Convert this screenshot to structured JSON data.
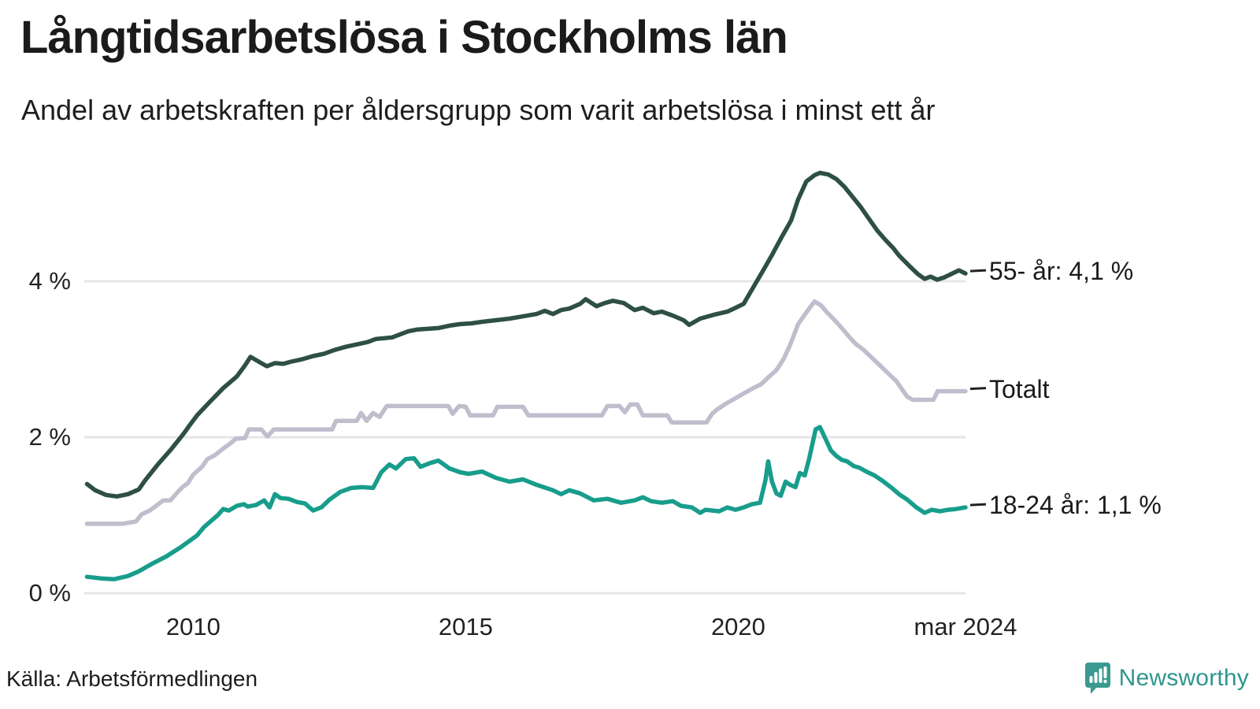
{
  "header": {
    "title": "Långtidsarbetslösa i Stockholms län",
    "subtitle": "Andel av arbetskraften per åldersgrupp som varit arbetslösa i minst ett år"
  },
  "footer": {
    "source": "Källa: Arbetsförmedlingen",
    "brand": "Newsworthy"
  },
  "colors": {
    "series_55plus": "#2e4f45",
    "series_total": "#c1bdcd",
    "series_18_24": "#189d8c",
    "gridline": "#e6e5e9",
    "tick_dash": "#222222",
    "brand_teal": "#2d968d",
    "brand_icon": "#3a9a91"
  },
  "chart_data": {
    "type": "line",
    "unit": "percent of labour force",
    "title": "Långtidsarbetslösa i Stockholms län",
    "subtitle": "Andel av arbetskraften per åldersgrupp som varit arbetslösa i minst ett år",
    "x_axis": {
      "range_years": [
        2008.0,
        2024.25
      ],
      "ticks": [
        {
          "t": 2010.0,
          "label": "2010"
        },
        {
          "t": 2015.0,
          "label": "2015"
        },
        {
          "t": 2020.0,
          "label": "2020"
        },
        {
          "t": 2024.17,
          "label": "mar 2024"
        }
      ]
    },
    "y_axis": {
      "range": [
        0,
        5.7
      ],
      "gridlines": true,
      "ticks": [
        {
          "v": 0,
          "label": "0 %"
        },
        {
          "v": 2,
          "label": "2 %"
        },
        {
          "v": 4,
          "label": "4 %"
        }
      ]
    },
    "legend_position": "right-end-labels",
    "series": [
      {
        "name": "55- år",
        "label": "55- år: 4,1 %",
        "end_value": 4.1,
        "color": "#2e4f45",
        "points": [
          [
            2008.05,
            1.4
          ],
          [
            2008.2,
            1.32
          ],
          [
            2008.4,
            1.26
          ],
          [
            2008.6,
            1.24
          ],
          [
            2008.8,
            1.27
          ],
          [
            2009.0,
            1.33
          ],
          [
            2009.11,
            1.44
          ],
          [
            2009.35,
            1.65
          ],
          [
            2009.6,
            1.85
          ],
          [
            2009.83,
            2.05
          ],
          [
            2009.93,
            2.15
          ],
          [
            2010.07,
            2.28
          ],
          [
            2010.3,
            2.45
          ],
          [
            2010.55,
            2.63
          ],
          [
            2010.8,
            2.78
          ],
          [
            2010.95,
            2.92
          ],
          [
            2011.05,
            3.03
          ],
          [
            2011.2,
            2.97
          ],
          [
            2011.35,
            2.91
          ],
          [
            2011.5,
            2.95
          ],
          [
            2011.65,
            2.94
          ],
          [
            2011.8,
            2.97
          ],
          [
            2012.0,
            3.0
          ],
          [
            2012.2,
            3.04
          ],
          [
            2012.4,
            3.07
          ],
          [
            2012.6,
            3.12
          ],
          [
            2012.8,
            3.16
          ],
          [
            2013.0,
            3.19
          ],
          [
            2013.2,
            3.22
          ],
          [
            2013.35,
            3.26
          ],
          [
            2013.5,
            3.27
          ],
          [
            2013.65,
            3.28
          ],
          [
            2013.8,
            3.32
          ],
          [
            2013.95,
            3.36
          ],
          [
            2014.1,
            3.38
          ],
          [
            2014.3,
            3.39
          ],
          [
            2014.5,
            3.4
          ],
          [
            2014.7,
            3.43
          ],
          [
            2014.9,
            3.45
          ],
          [
            2015.1,
            3.46
          ],
          [
            2015.3,
            3.48
          ],
          [
            2015.55,
            3.5
          ],
          [
            2015.8,
            3.52
          ],
          [
            2016.05,
            3.55
          ],
          [
            2016.3,
            3.58
          ],
          [
            2016.45,
            3.62
          ],
          [
            2016.6,
            3.58
          ],
          [
            2016.75,
            3.63
          ],
          [
            2016.9,
            3.65
          ],
          [
            2017.1,
            3.71
          ],
          [
            2017.2,
            3.77
          ],
          [
            2017.4,
            3.68
          ],
          [
            2017.55,
            3.72
          ],
          [
            2017.7,
            3.75
          ],
          [
            2017.9,
            3.72
          ],
          [
            2018.1,
            3.63
          ],
          [
            2018.25,
            3.66
          ],
          [
            2018.45,
            3.59
          ],
          [
            2018.6,
            3.61
          ],
          [
            2018.8,
            3.56
          ],
          [
            2019.0,
            3.5
          ],
          [
            2019.1,
            3.44
          ],
          [
            2019.3,
            3.52
          ],
          [
            2019.55,
            3.57
          ],
          [
            2019.8,
            3.61
          ],
          [
            2019.95,
            3.66
          ],
          [
            2020.1,
            3.71
          ],
          [
            2020.3,
            3.95
          ],
          [
            2020.45,
            4.13
          ],
          [
            2020.6,
            4.31
          ],
          [
            2020.8,
            4.57
          ],
          [
            2020.97,
            4.78
          ],
          [
            2021.1,
            5.05
          ],
          [
            2021.25,
            5.28
          ],
          [
            2021.4,
            5.36
          ],
          [
            2021.5,
            5.39
          ],
          [
            2021.65,
            5.37
          ],
          [
            2021.8,
            5.31
          ],
          [
            2021.95,
            5.21
          ],
          [
            2022.1,
            5.08
          ],
          [
            2022.25,
            4.95
          ],
          [
            2022.4,
            4.8
          ],
          [
            2022.55,
            4.65
          ],
          [
            2022.7,
            4.53
          ],
          [
            2022.85,
            4.42
          ],
          [
            2022.95,
            4.33
          ],
          [
            2023.05,
            4.26
          ],
          [
            2023.15,
            4.19
          ],
          [
            2023.3,
            4.09
          ],
          [
            2023.42,
            4.03
          ],
          [
            2023.53,
            4.06
          ],
          [
            2023.65,
            4.02
          ],
          [
            2023.78,
            4.05
          ],
          [
            2023.9,
            4.09
          ],
          [
            2024.05,
            4.14
          ],
          [
            2024.17,
            4.1
          ]
        ]
      },
      {
        "name": "Totalt",
        "label": "Totalt",
        "end_value": 2.6,
        "color": "#c1bdcd",
        "points": [
          [
            2008.05,
            0.89
          ],
          [
            2008.4,
            0.89
          ],
          [
            2008.7,
            0.89
          ],
          [
            2008.95,
            0.92
          ],
          [
            2009.05,
            1.01
          ],
          [
            2009.2,
            1.06
          ],
          [
            2009.3,
            1.11
          ],
          [
            2009.45,
            1.19
          ],
          [
            2009.58,
            1.19
          ],
          [
            2009.68,
            1.27
          ],
          [
            2009.8,
            1.36
          ],
          [
            2009.9,
            1.41
          ],
          [
            2010.0,
            1.52
          ],
          [
            2010.16,
            1.62
          ],
          [
            2010.26,
            1.72
          ],
          [
            2010.4,
            1.77
          ],
          [
            2010.54,
            1.85
          ],
          [
            2010.68,
            1.92
          ],
          [
            2010.78,
            1.98
          ],
          [
            2010.95,
            1.99
          ],
          [
            2011.02,
            2.1
          ],
          [
            2011.25,
            2.1
          ],
          [
            2011.36,
            2.01
          ],
          [
            2011.48,
            2.1
          ],
          [
            2012.55,
            2.1
          ],
          [
            2012.62,
            2.21
          ],
          [
            2013.0,
            2.21
          ],
          [
            2013.08,
            2.31
          ],
          [
            2013.18,
            2.21
          ],
          [
            2013.3,
            2.31
          ],
          [
            2013.42,
            2.26
          ],
          [
            2013.55,
            2.4
          ],
          [
            2014.68,
            2.4
          ],
          [
            2014.76,
            2.3
          ],
          [
            2014.88,
            2.4
          ],
          [
            2015.0,
            2.39
          ],
          [
            2015.08,
            2.28
          ],
          [
            2015.5,
            2.28
          ],
          [
            2015.58,
            2.39
          ],
          [
            2016.05,
            2.39
          ],
          [
            2016.15,
            2.28
          ],
          [
            2017.5,
            2.28
          ],
          [
            2017.6,
            2.4
          ],
          [
            2017.82,
            2.4
          ],
          [
            2017.92,
            2.32
          ],
          [
            2018.02,
            2.42
          ],
          [
            2018.15,
            2.42
          ],
          [
            2018.25,
            2.28
          ],
          [
            2018.7,
            2.28
          ],
          [
            2018.78,
            2.19
          ],
          [
            2019.42,
            2.19
          ],
          [
            2019.52,
            2.3
          ],
          [
            2019.62,
            2.36
          ],
          [
            2019.75,
            2.42
          ],
          [
            2019.9,
            2.48
          ],
          [
            2020.07,
            2.55
          ],
          [
            2020.25,
            2.62
          ],
          [
            2020.42,
            2.68
          ],
          [
            2020.57,
            2.78
          ],
          [
            2020.7,
            2.86
          ],
          [
            2020.83,
            3.0
          ],
          [
            2020.95,
            3.18
          ],
          [
            2021.1,
            3.45
          ],
          [
            2021.25,
            3.6
          ],
          [
            2021.4,
            3.74
          ],
          [
            2021.52,
            3.69
          ],
          [
            2021.63,
            3.6
          ],
          [
            2021.77,
            3.5
          ],
          [
            2021.9,
            3.4
          ],
          [
            2022.02,
            3.3
          ],
          [
            2022.15,
            3.2
          ],
          [
            2022.3,
            3.12
          ],
          [
            2022.45,
            3.02
          ],
          [
            2022.6,
            2.92
          ],
          [
            2022.75,
            2.82
          ],
          [
            2022.9,
            2.72
          ],
          [
            2023.0,
            2.62
          ],
          [
            2023.1,
            2.52
          ],
          [
            2023.2,
            2.48
          ],
          [
            2023.58,
            2.48
          ],
          [
            2023.66,
            2.59
          ],
          [
            2024.17,
            2.59
          ]
        ]
      },
      {
        "name": "18-24 år",
        "label": "18-24 år: 1,1 %",
        "end_value": 1.1,
        "color": "#189d8c",
        "points": [
          [
            2008.05,
            0.21
          ],
          [
            2008.3,
            0.19
          ],
          [
            2008.55,
            0.18
          ],
          [
            2008.8,
            0.22
          ],
          [
            2009.0,
            0.28
          ],
          [
            2009.25,
            0.38
          ],
          [
            2009.5,
            0.47
          ],
          [
            2009.75,
            0.58
          ],
          [
            2009.95,
            0.68
          ],
          [
            2010.07,
            0.74
          ],
          [
            2010.2,
            0.85
          ],
          [
            2010.35,
            0.94
          ],
          [
            2010.45,
            1.0
          ],
          [
            2010.55,
            1.08
          ],
          [
            2010.65,
            1.06
          ],
          [
            2010.8,
            1.12
          ],
          [
            2010.93,
            1.14
          ],
          [
            2011.0,
            1.11
          ],
          [
            2011.15,
            1.13
          ],
          [
            2011.3,
            1.19
          ],
          [
            2011.4,
            1.1
          ],
          [
            2011.5,
            1.27
          ],
          [
            2011.6,
            1.22
          ],
          [
            2011.75,
            1.21
          ],
          [
            2011.9,
            1.17
          ],
          [
            2012.05,
            1.15
          ],
          [
            2012.2,
            1.06
          ],
          [
            2012.35,
            1.1
          ],
          [
            2012.5,
            1.2
          ],
          [
            2012.7,
            1.3
          ],
          [
            2012.9,
            1.35
          ],
          [
            2013.1,
            1.36
          ],
          [
            2013.3,
            1.35
          ],
          [
            2013.45,
            1.55
          ],
          [
            2013.6,
            1.65
          ],
          [
            2013.72,
            1.6
          ],
          [
            2013.9,
            1.72
          ],
          [
            2014.05,
            1.73
          ],
          [
            2014.17,
            1.62
          ],
          [
            2014.35,
            1.67
          ],
          [
            2014.5,
            1.7
          ],
          [
            2014.7,
            1.6
          ],
          [
            2014.9,
            1.55
          ],
          [
            2015.05,
            1.53
          ],
          [
            2015.3,
            1.56
          ],
          [
            2015.55,
            1.48
          ],
          [
            2015.8,
            1.43
          ],
          [
            2016.05,
            1.46
          ],
          [
            2016.3,
            1.39
          ],
          [
            2016.6,
            1.32
          ],
          [
            2016.75,
            1.27
          ],
          [
            2016.9,
            1.32
          ],
          [
            2017.1,
            1.28
          ],
          [
            2017.35,
            1.19
          ],
          [
            2017.6,
            1.21
          ],
          [
            2017.85,
            1.16
          ],
          [
            2018.1,
            1.19
          ],
          [
            2018.25,
            1.23
          ],
          [
            2018.4,
            1.18
          ],
          [
            2018.6,
            1.16
          ],
          [
            2018.8,
            1.18
          ],
          [
            2018.95,
            1.12
          ],
          [
            2019.15,
            1.1
          ],
          [
            2019.3,
            1.03
          ],
          [
            2019.4,
            1.07
          ],
          [
            2019.65,
            1.05
          ],
          [
            2019.8,
            1.1
          ],
          [
            2019.95,
            1.07
          ],
          [
            2020.1,
            1.1
          ],
          [
            2020.25,
            1.14
          ],
          [
            2020.4,
            1.16
          ],
          [
            2020.5,
            1.45
          ],
          [
            2020.55,
            1.69
          ],
          [
            2020.62,
            1.43
          ],
          [
            2020.7,
            1.28
          ],
          [
            2020.78,
            1.25
          ],
          [
            2020.87,
            1.43
          ],
          [
            2020.95,
            1.39
          ],
          [
            2021.05,
            1.36
          ],
          [
            2021.13,
            1.54
          ],
          [
            2021.22,
            1.51
          ],
          [
            2021.3,
            1.72
          ],
          [
            2021.42,
            2.1
          ],
          [
            2021.5,
            2.13
          ],
          [
            2021.6,
            1.98
          ],
          [
            2021.7,
            1.83
          ],
          [
            2021.8,
            1.76
          ],
          [
            2021.9,
            1.71
          ],
          [
            2022.0,
            1.69
          ],
          [
            2022.12,
            1.63
          ],
          [
            2022.22,
            1.61
          ],
          [
            2022.35,
            1.56
          ],
          [
            2022.5,
            1.51
          ],
          [
            2022.65,
            1.44
          ],
          [
            2022.8,
            1.36
          ],
          [
            2022.95,
            1.27
          ],
          [
            2023.1,
            1.2
          ],
          [
            2023.27,
            1.1
          ],
          [
            2023.42,
            1.03
          ],
          [
            2023.55,
            1.07
          ],
          [
            2023.7,
            1.05
          ],
          [
            2023.85,
            1.07
          ],
          [
            2024.0,
            1.08
          ],
          [
            2024.17,
            1.1
          ]
        ]
      }
    ]
  }
}
